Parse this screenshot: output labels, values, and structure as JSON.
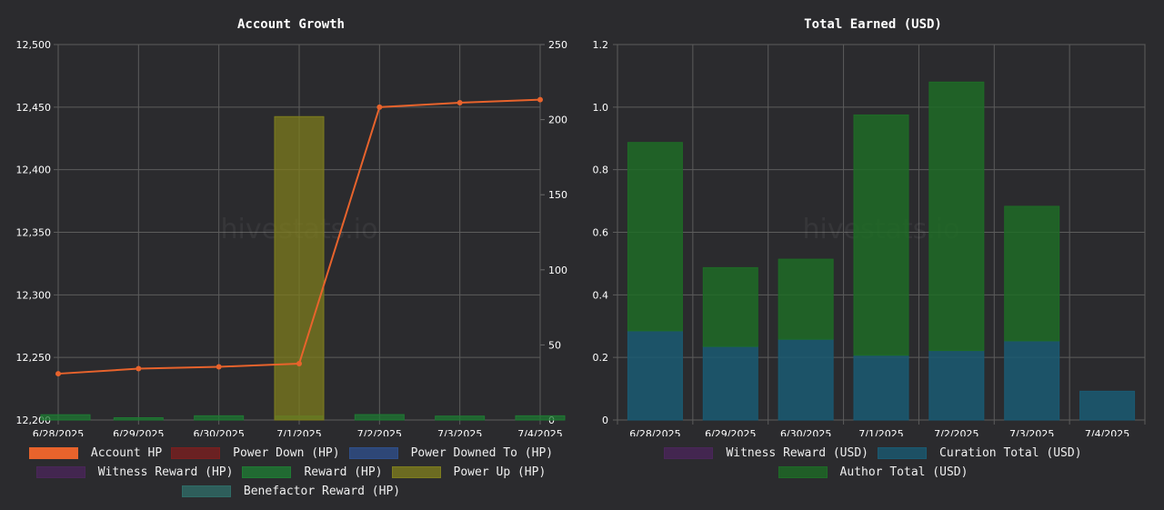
{
  "watermark": "hivestats.io",
  "chart_data": [
    {
      "type": "bar",
      "title": "Account Growth",
      "categories": [
        "6/28/2025",
        "6/29/2025",
        "6/30/2025",
        "7/1/2025",
        "7/2/2025",
        "7/3/2025",
        "7/4/2025"
      ],
      "left_axis": {
        "ticks": [
          "12,200",
          "12,250",
          "12,300",
          "12,350",
          "12,400",
          "12,450",
          "12,500"
        ],
        "ylim": [
          12200,
          12500
        ]
      },
      "right_axis": {
        "ticks": [
          "0",
          "50",
          "100",
          "150",
          "200",
          "250"
        ],
        "ylim": [
          0,
          250
        ]
      },
      "line_series": {
        "name": "Account HP",
        "axis": "left",
        "color": "#e8632c",
        "values": [
          12237,
          12241,
          12242.5,
          12245,
          12450,
          12453.5,
          12456
        ]
      },
      "bar_series": [
        {
          "name": "Power Down (HP)",
          "color": "#7a1f1f",
          "values": [
            0,
            0,
            0,
            0,
            0,
            0,
            0
          ]
        },
        {
          "name": "Power Downed To (HP)",
          "color": "#2f4f8a",
          "values": [
            0,
            0,
            0,
            0,
            0,
            0,
            0
          ]
        },
        {
          "name": "Witness Reward (HP)",
          "color": "#4a2659",
          "values": [
            0,
            0,
            0,
            0,
            0,
            0,
            0
          ]
        },
        {
          "name": "Reward (HP)",
          "color": "#1f7a33",
          "values": [
            3.5,
            1.5,
            2.8,
            2.6,
            3.6,
            2.6,
            2.8
          ]
        },
        {
          "name": "Power Up (HP)",
          "color": "#7d7c1e",
          "values": [
            0,
            0,
            0,
            202,
            0,
            0,
            0
          ]
        },
        {
          "name": "Benefactor Reward (HP)",
          "color": "#2f6b66",
          "values": [
            0,
            0,
            0,
            0,
            0,
            0,
            0
          ]
        }
      ],
      "legend": [
        {
          "label": "Account HP",
          "color": "#e8632c"
        },
        {
          "label": "Power Down (HP)",
          "color": "#7a1f1f"
        },
        {
          "label": "Power Downed To (HP)",
          "color": "#2f4f8a"
        },
        {
          "label": "Witness Reward (HP)",
          "color": "#4a2659"
        },
        {
          "label": "Reward (HP)",
          "color": "#1f7a33"
        },
        {
          "label": "Power Up (HP)",
          "color": "#7d7c1e"
        },
        {
          "label": "Benefactor Reward (HP)",
          "color": "#2f6b66"
        }
      ]
    },
    {
      "type": "bar",
      "stacked": true,
      "title": "Total Earned (USD)",
      "categories": [
        "6/28/2025",
        "6/29/2025",
        "6/30/2025",
        "7/1/2025",
        "7/2/2025",
        "7/3/2025",
        "7/4/2025"
      ],
      "y_axis": {
        "ticks": [
          "0",
          "0.2",
          "0.4",
          "0.6",
          "0.8",
          "1.0",
          "1.2"
        ],
        "ylim": [
          0,
          1.2
        ]
      },
      "series": [
        {
          "name": "Witness Reward (USD)",
          "color": "#4a2659",
          "values": [
            0,
            0,
            0,
            0,
            0,
            0,
            0
          ]
        },
        {
          "name": "Curation Total (USD)",
          "color": "#1a5a72",
          "values": [
            0.285,
            0.235,
            0.258,
            0.207,
            0.222,
            0.253,
            0.092
          ]
        },
        {
          "name": "Author Total (USD)",
          "color": "#1e6b26",
          "values": [
            0.602,
            0.252,
            0.256,
            0.768,
            0.858,
            0.43,
            0
          ]
        }
      ],
      "legend": [
        {
          "label": "Witness Reward (USD)",
          "color": "#4a2659"
        },
        {
          "label": "Curation Total (USD)",
          "color": "#1a5a72"
        },
        {
          "label": "Author Total (USD)",
          "color": "#1e6b26"
        }
      ]
    }
  ]
}
